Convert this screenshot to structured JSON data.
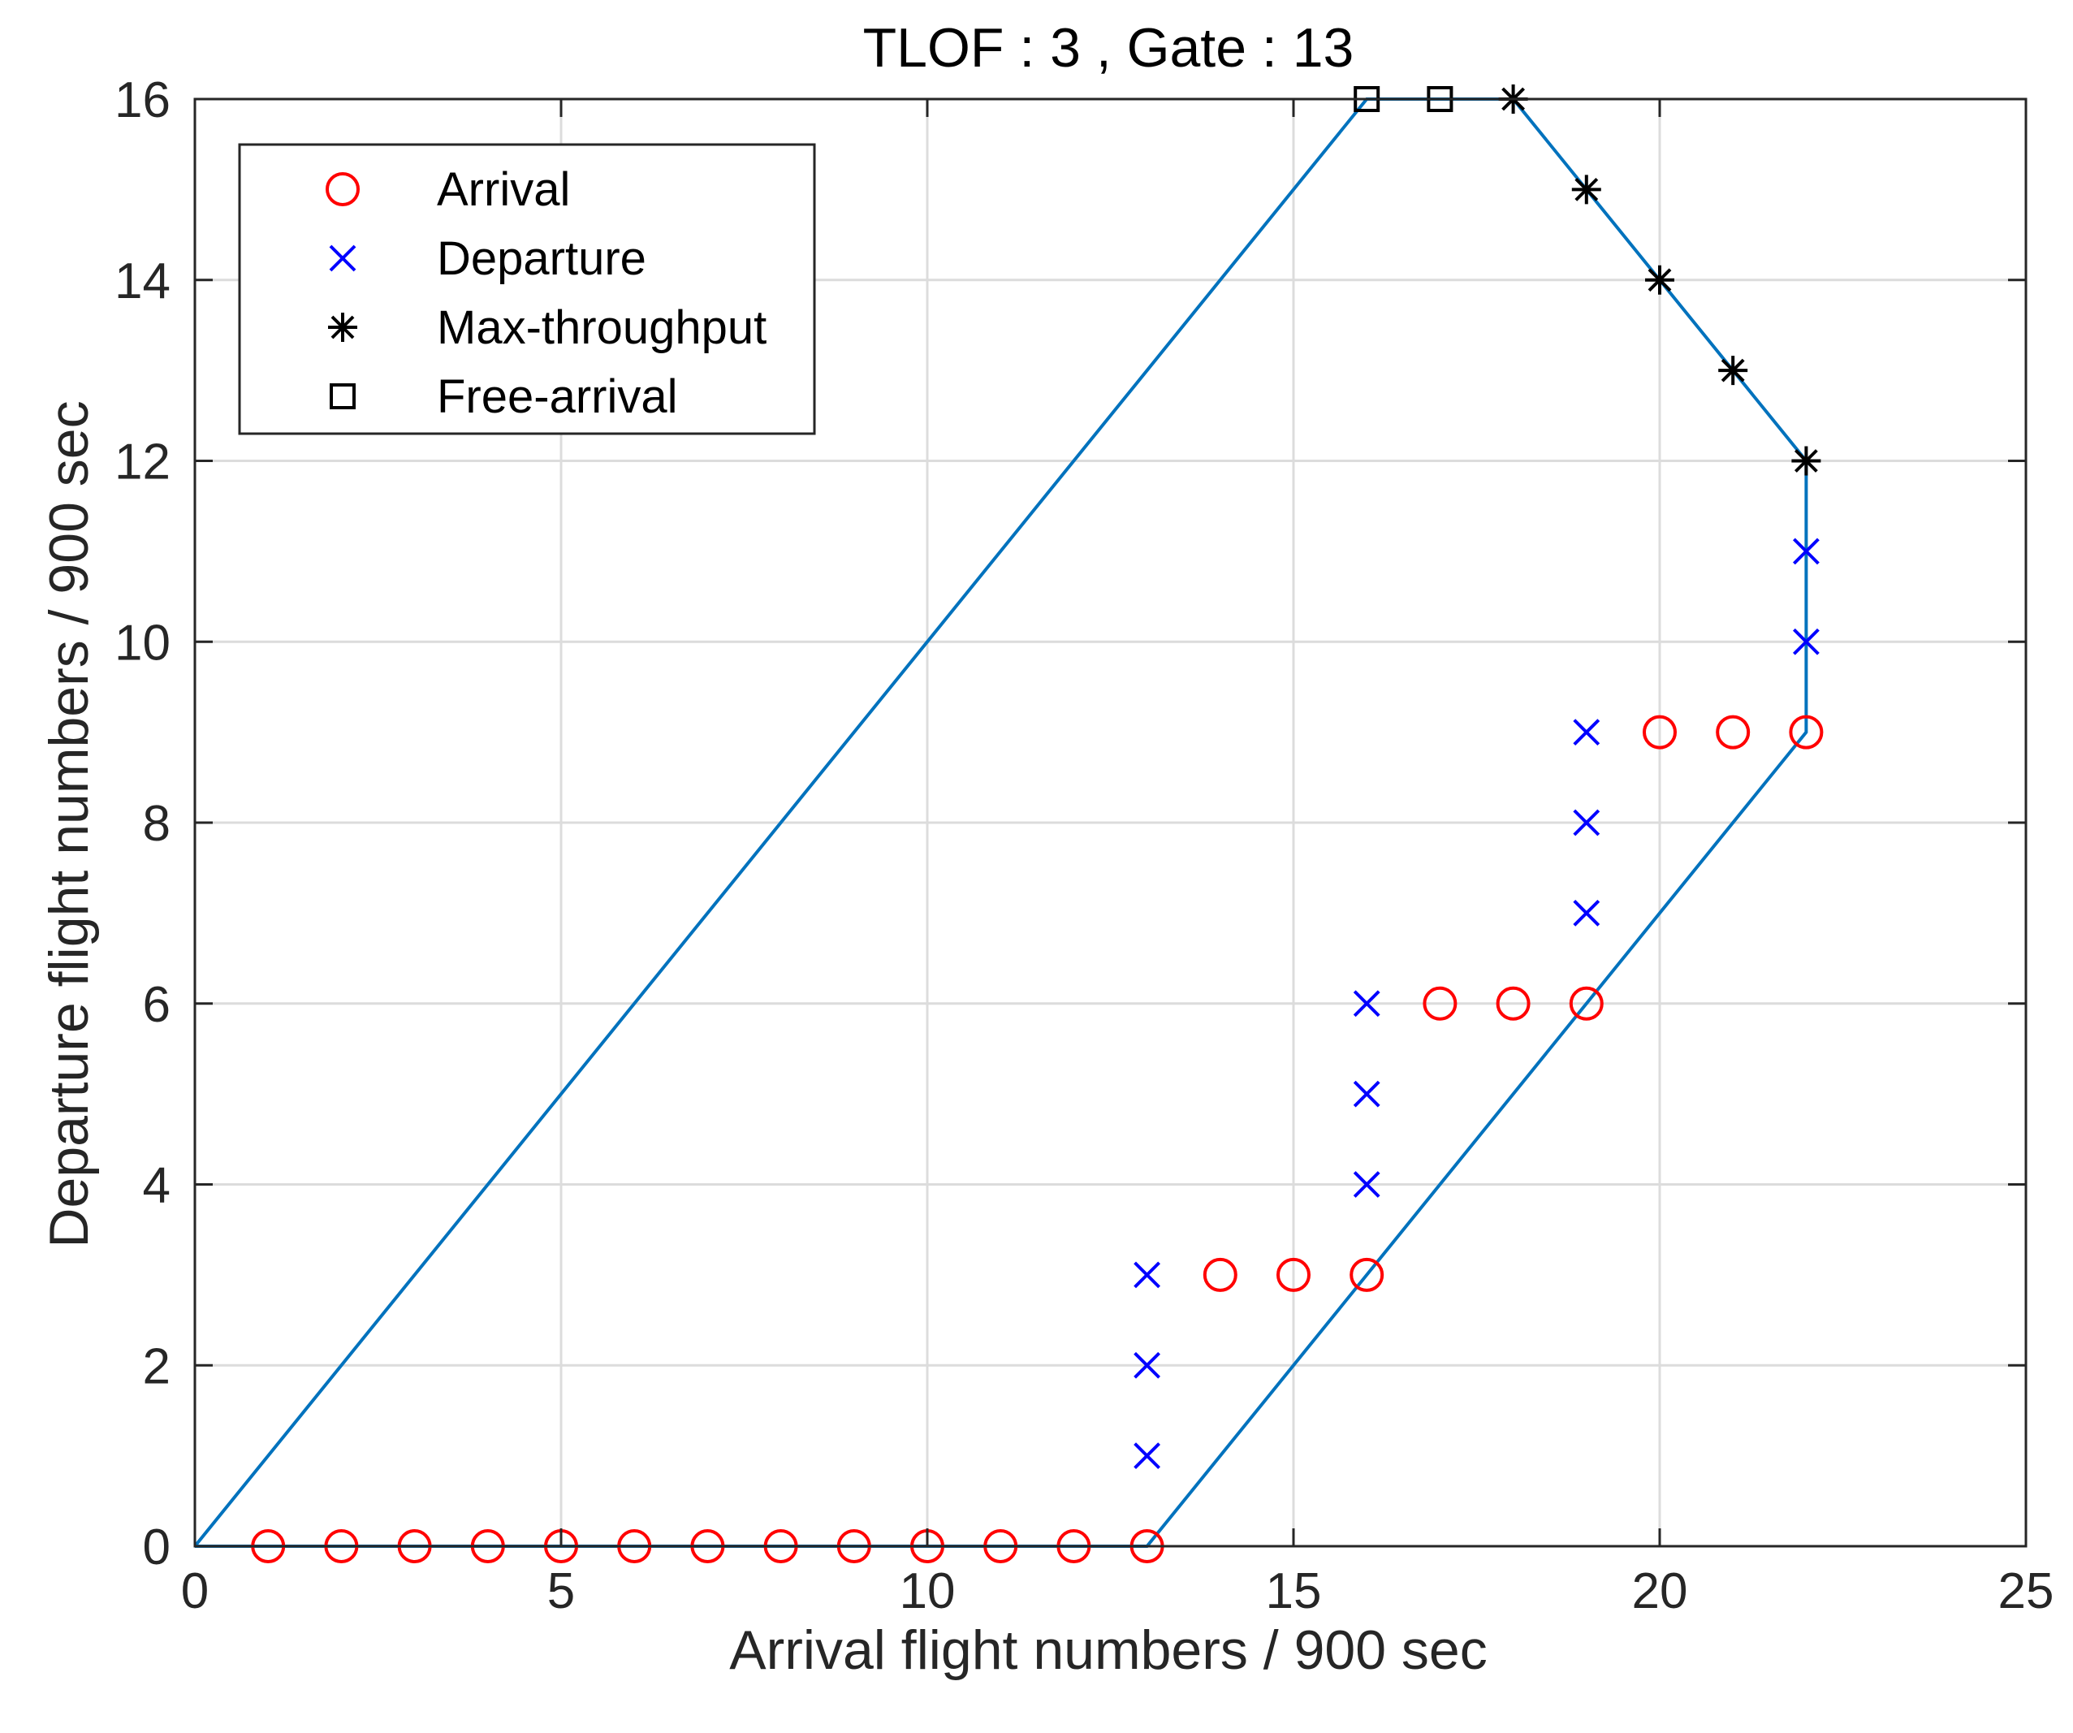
{
  "chart_data": {
    "type": "scatter",
    "title": "TLOF : 3 , Gate : 13",
    "xlabel": "Arrival flight numbers / 900 sec",
    "ylabel": "Departure flight numbers / 900 sec",
    "xlim": [
      0,
      25
    ],
    "ylim": [
      0,
      16
    ],
    "xticks": [
      0,
      5,
      10,
      15,
      20,
      25
    ],
    "yticks": [
      0,
      2,
      4,
      6,
      8,
      10,
      12,
      14,
      16
    ],
    "grid": true,
    "legend_position": "top-left",
    "boundary": {
      "color": "#0072BD",
      "x": [
        0,
        16,
        18,
        22,
        22,
        13,
        0
      ],
      "y": [
        0,
        16,
        16,
        12,
        9,
        0,
        0
      ]
    },
    "series": [
      {
        "name": "Arrival",
        "marker": "circle",
        "color": "#FF0000",
        "x": [
          1,
          2,
          3,
          4,
          5,
          6,
          7,
          8,
          9,
          10,
          11,
          12,
          13,
          14,
          15,
          16,
          17,
          18,
          19,
          20,
          21,
          22
        ],
        "y": [
          0,
          0,
          0,
          0,
          0,
          0,
          0,
          0,
          0,
          0,
          0,
          0,
          0,
          3,
          3,
          3,
          6,
          6,
          6,
          9,
          9,
          9
        ]
      },
      {
        "name": "Departure",
        "marker": "x",
        "color": "#0000FF",
        "x": [
          13,
          13,
          13,
          16,
          16,
          16,
          19,
          19,
          19,
          22,
          22
        ],
        "y": [
          1,
          2,
          3,
          4,
          5,
          6,
          7,
          8,
          9,
          10,
          11
        ]
      },
      {
        "name": "Max-throughput",
        "marker": "asterisk",
        "color": "#000000",
        "x": [
          18,
          19,
          20,
          21,
          22
        ],
        "y": [
          16,
          15,
          14,
          13,
          12
        ]
      },
      {
        "name": "Free-arrival",
        "marker": "square",
        "color": "#000000",
        "x": [
          16,
          17
        ],
        "y": [
          16,
          16
        ]
      }
    ]
  }
}
